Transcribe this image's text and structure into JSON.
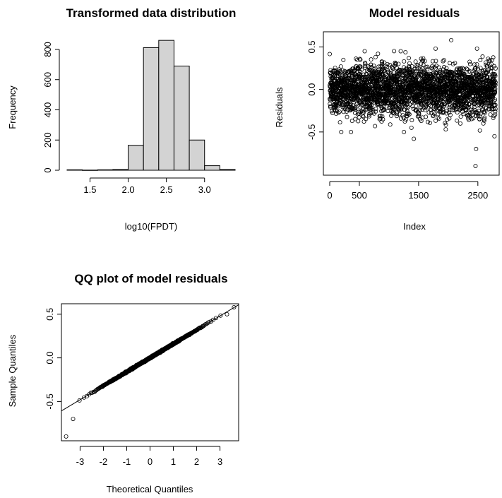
{
  "chart_data": [
    {
      "type": "bar",
      "title": "Transformed data distribution",
      "xlabel": "log10(FPDT)",
      "ylabel": "Frequency",
      "bin_edges": [
        1.2,
        1.4,
        1.6,
        1.8,
        2.0,
        2.2,
        2.4,
        2.6,
        2.8,
        3.0,
        3.2,
        3.4
      ],
      "values": [
        3,
        1,
        3,
        5,
        165,
        812,
        860,
        690,
        200,
        30,
        5
      ],
      "xticks": [
        "1.5",
        "2.0",
        "2.5",
        "3.0"
      ],
      "xtick_values": [
        1.5,
        2.0,
        2.5,
        3.0
      ],
      "yticks": [
        "0",
        "200",
        "400",
        "600",
        "800"
      ],
      "ytick_values": [
        0,
        200,
        400,
        600,
        800
      ],
      "xlim": [
        1.2,
        3.4
      ],
      "ylim": [
        0,
        870
      ],
      "fill_color": "#d3d3d3"
    },
    {
      "type": "scatter",
      "title": "Model residuals",
      "xlabel": "Index",
      "ylabel": "Residuals",
      "n": 2800,
      "center": 0.0,
      "spread_sd": 0.15,
      "min": -0.9,
      "max": 0.58,
      "outliers": [
        {
          "x": 2050,
          "y": 0.58
        },
        {
          "x": 2470,
          "y": -0.7
        },
        {
          "x": 2460,
          "y": -0.9
        },
        {
          "x": 1420,
          "y": -0.58
        },
        {
          "x": 590,
          "y": 0.45
        },
        {
          "x": 2780,
          "y": -0.55
        }
      ],
      "xticks": [
        "0",
        "500",
        "1500",
        "2500"
      ],
      "xtick_values": [
        0,
        500,
        1500,
        2500
      ],
      "yticks": [
        "0.5",
        "0.0",
        "-0.5"
      ],
      "ytick_values": [
        0.5,
        0.0,
        -0.5
      ],
      "xlim": [
        0,
        2800
      ],
      "ylim": [
        -0.95,
        0.62
      ]
    },
    {
      "type": "scatter",
      "title": "QQ plot of model residuals",
      "xlabel": "Theoretical Quantiles",
      "ylabel": "Sample Quantiles",
      "n": 2800,
      "sample_sd": 0.16,
      "reference_line": {
        "slope": 0.16,
        "intercept": 0.0
      },
      "outliers": [
        {
          "x": -3.6,
          "y": -0.9
        },
        {
          "x": -3.3,
          "y": -0.7
        },
        {
          "x": 3.6,
          "y": 0.58
        },
        {
          "x": 3.3,
          "y": 0.5
        }
      ],
      "xticks": [
        "-3",
        "-2",
        "-1",
        "0",
        "1",
        "2",
        "3"
      ],
      "xtick_values": [
        -3,
        -2,
        -1,
        0,
        1,
        2,
        3
      ],
      "yticks": [
        "0.5",
        "0.0",
        "-0.5"
      ],
      "ytick_values": [
        0.5,
        0.0,
        -0.5
      ],
      "xlim": [
        -3.8,
        3.8
      ],
      "ylim": [
        -0.95,
        0.62
      ]
    }
  ]
}
